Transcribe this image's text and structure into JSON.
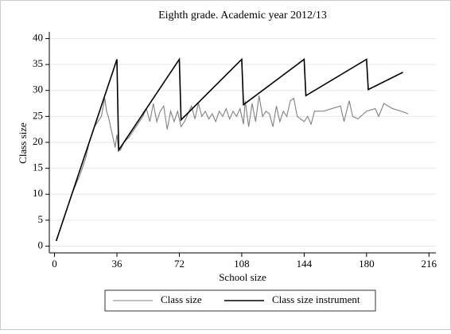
{
  "chart_data": {
    "type": "line",
    "title": "Eighth grade. Academic year 2012/13",
    "x_label": "School size",
    "y_label": "Class size",
    "xlim": [
      -3,
      220
    ],
    "ylim": [
      -1.3,
      41.3
    ],
    "xticks": [
      0,
      36,
      72,
      108,
      144,
      180,
      216
    ],
    "yticks": [
      0,
      5,
      10,
      15,
      20,
      25,
      30,
      35,
      40
    ],
    "grid": true,
    "legend": "bottom",
    "series": [
      {
        "name": "Class size",
        "color": "#808080",
        "x": [
          1,
          5,
          10,
          15,
          18,
          20,
          23,
          25,
          27,
          29,
          30,
          31,
          33,
          35,
          36,
          37,
          38,
          40,
          43,
          46,
          49,
          51,
          53,
          55,
          57,
          59,
          61,
          63,
          65,
          67,
          69,
          71,
          73,
          75,
          77,
          79,
          81,
          83,
          85,
          87,
          89,
          91,
          93,
          95,
          97,
          99,
          101,
          103,
          105,
          107,
          109,
          110,
          112,
          114,
          116,
          118,
          120,
          122,
          124,
          126,
          128,
          130,
          132,
          134,
          136,
          138,
          140,
          142,
          144,
          146,
          148,
          150,
          155,
          160,
          165,
          167,
          170,
          172,
          175,
          180,
          185,
          187,
          190,
          195,
          200,
          204
        ],
        "values": [
          1,
          5,
          10,
          14,
          17,
          20,
          23,
          24,
          25,
          28.5,
          26,
          25,
          22,
          19,
          21.5,
          18.5,
          18.5,
          20,
          21,
          22.5,
          24,
          25,
          26.5,
          24,
          27.5,
          24,
          26,
          27,
          22.5,
          26,
          24,
          26,
          23,
          24,
          25.5,
          27,
          24.5,
          27.5,
          25,
          26,
          24.5,
          25.5,
          24,
          26,
          25,
          26.5,
          24.5,
          26,
          25,
          26.5,
          23.5,
          28,
          23,
          27.5,
          24,
          29,
          25,
          26,
          25.5,
          23,
          27,
          24,
          26,
          25,
          28,
          28.5,
          25,
          24.5,
          24,
          25,
          23.5,
          26,
          26,
          26.5,
          27,
          24,
          28,
          25,
          24.5,
          26,
          26.5,
          25,
          27.5,
          26.5,
          26,
          25.5
        ]
      },
      {
        "name": "Class size instrument",
        "color": "#000000",
        "x": [
          1,
          36,
          37,
          72,
          73,
          108,
          109,
          144,
          145,
          180,
          181,
          201
        ],
        "values": [
          1,
          36,
          18.5,
          36,
          24.33,
          36,
          27.25,
          36,
          29,
          36,
          30.17,
          33.5
        ]
      }
    ]
  }
}
